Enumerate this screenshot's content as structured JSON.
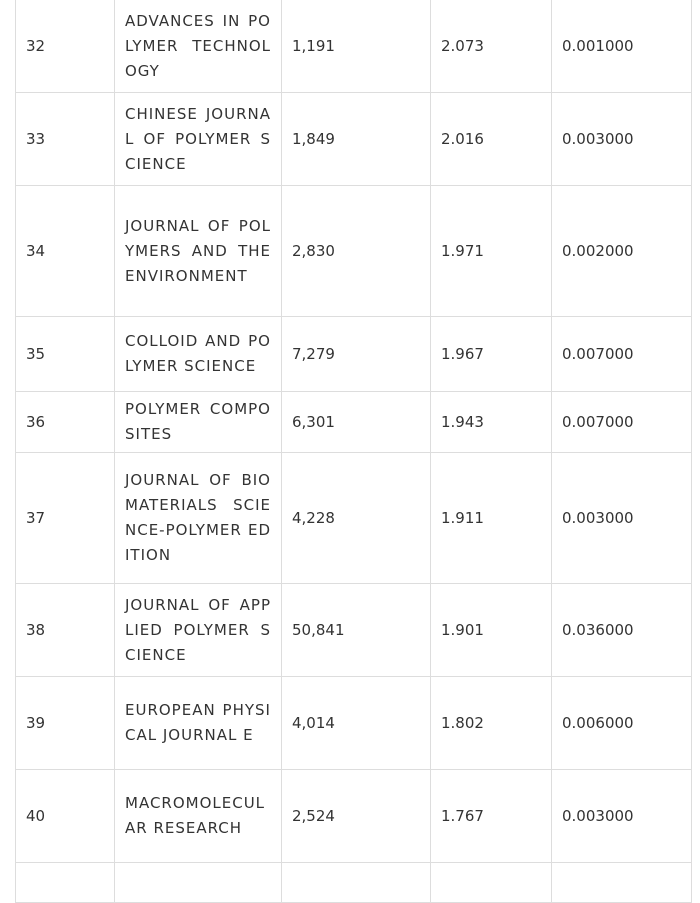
{
  "table": {
    "rows": [
      [
        "32",
        "ADVANCES IN POLYMER TECHNOLOGY",
        "1,191",
        "2.073",
        "0.001000"
      ],
      [
        "33",
        "CHINESE JOURNAL OF POLYMER SCIENCE",
        "1,849",
        "2.016",
        "0.003000"
      ],
      [
        "34",
        "JOURNAL OF POLYMERS AND THE ENVIRONMENT",
        "2,830",
        "1.971",
        "0.002000"
      ],
      [
        "35",
        "COLLOID AND POLYMER SCIENCE",
        "7,279",
        "1.967",
        "0.007000"
      ],
      [
        "36",
        "POLYMER COMPOSITES",
        "6,301",
        "1.943",
        "0.007000"
      ],
      [
        "37",
        "JOURNAL OF BIOMATERIALS SCIENCE-POLYMER EDITION",
        "4,228",
        "1.911",
        "0.003000"
      ],
      [
        "38",
        "JOURNAL OF APPLIED POLYMER SCIENCE",
        "50,841",
        "1.901",
        "0.036000"
      ],
      [
        "39",
        "EUROPEAN PHYSICAL JOURNAL E",
        "4,014",
        "1.802",
        "0.006000"
      ],
      [
        "40",
        "MACROMOLECULAR RESEARCH",
        "2,524",
        "1.767",
        "0.003000"
      ]
    ]
  }
}
